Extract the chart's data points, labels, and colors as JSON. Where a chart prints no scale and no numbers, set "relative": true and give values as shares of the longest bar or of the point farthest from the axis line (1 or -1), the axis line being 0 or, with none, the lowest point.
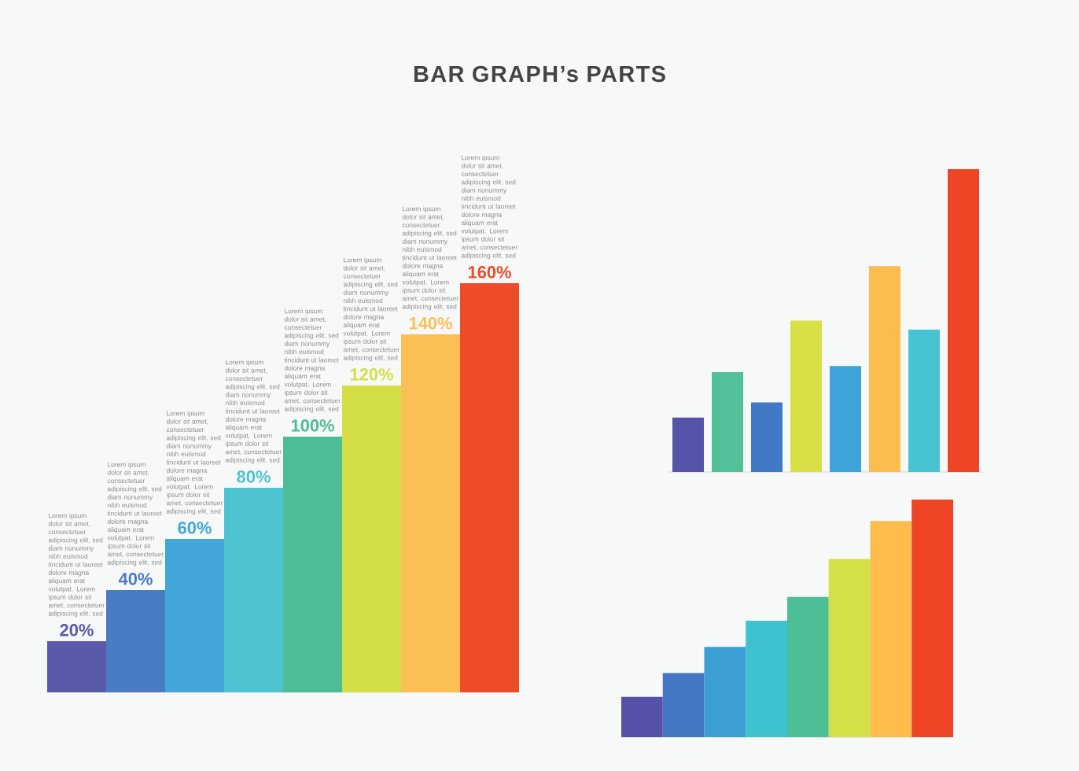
{
  "chart_data": [
    {
      "type": "bar",
      "title": "BAR GRAPH’s PARTS",
      "categories": [
        null,
        null,
        null,
        null,
        null,
        null,
        null,
        null
      ],
      "values": [
        20,
        40,
        60,
        80,
        100,
        120,
        140,
        160
      ],
      "colors": [
        "#5b59aa",
        "#4a7cc4",
        "#42a6d8",
        "#4ec3d0",
        "#4dbd95",
        "#d4df45",
        "#fbbf55",
        "#ee4b2b"
      ],
      "value_labels": [
        "20%",
        "40%",
        "60%",
        "80%",
        "100%",
        "120%",
        "140%",
        "160%"
      ],
      "annotations": [
        "Lorem ipsum dolor sit amet, consectetuer adipiscing elit, sed diam nonummy nibh euismod tincidunt ut laoreet dolore magna aliquam erat volutpat. Lorem ipsum dolor sit amet, consectetuer adipiscing elit, sed",
        "Lorem ipsum dolor sit amet, consectetuer adipiscing elit, sed diam nonummy nibh euismod tincidunt ut laoreet dolore magna aliquam erat volutpat. Lorem ipsum dolor sit amet, consectetuer adipiscing elit, sed",
        "Lorem ipsum dolor sit amet, consectetuer adipiscing elit, sed diam nonummy nibh euismod tincidunt ut laoreet dolore magna aliquam erat volutpat. Lorem ipsum dolor sit amet, consectetuer adipiscing elit, sed",
        "Lorem ipsum dolor sit amet, consectetuer adipiscing elit, sed diam nonummy nibh euismod tincidunt ut laoreet dolore magna aliquam erat volutpat. Lorem ipsum dolor sit amet, consectetuer adipiscing elit, sed",
        "Lorem ipsum dolor sit amet, consectetuer adipiscing elit, sed diam nonummy nibh euismod tincidunt ut laoreet dolore magna aliquam erat volutpat. Lorem ipsum dolor sit amet, consectetuer adipiscing elit, sed",
        "Lorem ipsum dolor sit amet, consectetuer adipiscing elit, sed diam nonummy nibh euismod tincidunt ut laoreet dolore magna aliquam erat volutpat. Lorem ipsum dolor sit amet, consectetuer adipiscing elit, sed",
        "Lorem ipsum dolor sit amet, consectetuer adipiscing elit, sed diam nonummy nibh euismod tincidunt ut laoreet dolore magna aliquam erat volutpat. Lorem ipsum dolor sit amet, consectetuer adipiscing elit, sed",
        "Lorem ipsum dolor sit amet, consectetuer adipiscing elit, sed diam nonummy nibh euismod tincidunt ut laoreet dolore magna aliquam erat volutpat. Lorem ipsum dolor sit amet, consectetuer adipiscing elit, sed"
      ]
    },
    {
      "type": "bar",
      "relative": true,
      "categories": [
        null,
        null,
        null,
        null,
        null,
        null,
        null,
        null
      ],
      "values": [
        0.18,
        0.33,
        0.23,
        0.5,
        0.35,
        0.68,
        0.47,
        1.0
      ],
      "colors": [
        "#5654a8",
        "#52c199",
        "#4279c4",
        "#d7e146",
        "#3ea3d9",
        "#fcbc4e",
        "#47c4d1",
        "#ef4527"
      ]
    },
    {
      "type": "bar",
      "relative": true,
      "categories": [
        null,
        null,
        null,
        null,
        null,
        null,
        null,
        null
      ],
      "values": [
        0.17,
        0.27,
        0.38,
        0.49,
        0.59,
        0.75,
        0.91,
        1.0
      ],
      "colors": [
        "#5651a6",
        "#4477c2",
        "#3b9fd3",
        "#3fc2cf",
        "#4cbf97",
        "#d4e045",
        "#fdbc4b",
        "#ef4425"
      ]
    }
  ]
}
